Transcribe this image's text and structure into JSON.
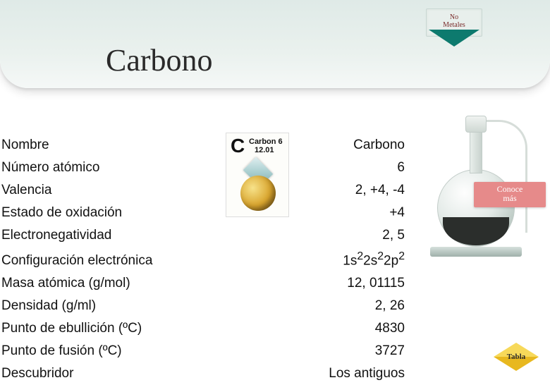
{
  "title": "Carbono",
  "category": {
    "line1": "No",
    "line2": "Metales"
  },
  "element_card": {
    "symbol": "C",
    "label": "Carbon 6",
    "mass": "12.01"
  },
  "properties": [
    {
      "label": "Nombre",
      "value": "Carbono"
    },
    {
      "label": "Número atómico",
      "value": "6"
    },
    {
      "label": "Valencia",
      "value": "2, +4, -4"
    },
    {
      "label": "Estado de oxidación",
      "value": "+4"
    },
    {
      "label": "Electronegatividad",
      "value": "2, 5"
    },
    {
      "label": "Configuración electrónica",
      "value_html": "1s<sup>2</sup>2s<sup>2</sup>2p<sup>2</sup>",
      "value_plain": "1s22s22p2"
    },
    {
      "label": "Masa atómica (g/mol)",
      "value": "12, 01115"
    },
    {
      "label": "Densidad (g/ml)",
      "value": "2, 26"
    },
    {
      "label": "Punto de ebullición (ºC)",
      "value": "4830"
    },
    {
      "label": "Punto de fusión (ºC)",
      "value": "3727"
    },
    {
      "label": "Descubridor",
      "value": "Los antiguos"
    }
  ],
  "buttons": {
    "conoce_mas_line1": "Conoce",
    "conoce_mas_line2": "más",
    "tabla": "Tabla"
  },
  "colors": {
    "header_gradient_top": "#dfeae7",
    "triangle": "#0d7a6e",
    "conoce_bg": "#e68a8a",
    "tabla_yellow_top": "#f7d95a",
    "tabla_yellow_bottom": "#e8b81f"
  }
}
